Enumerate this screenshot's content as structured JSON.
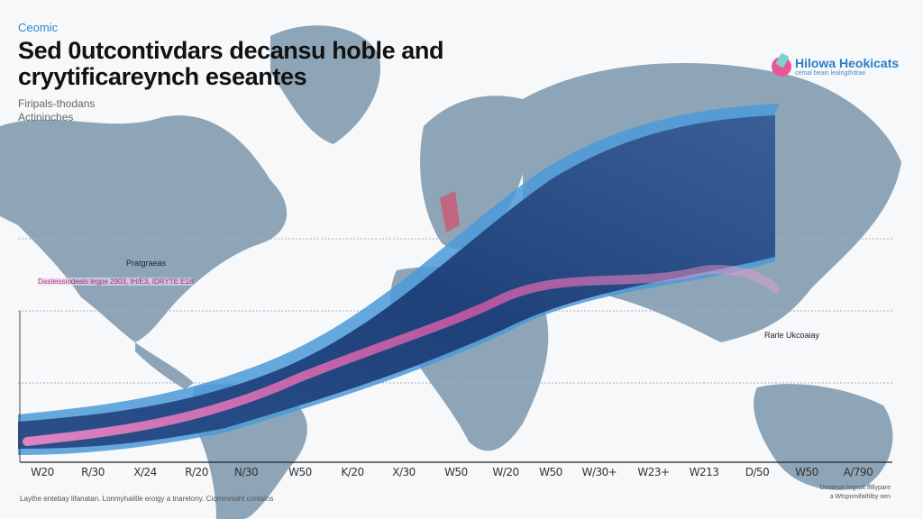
{
  "header": {
    "kicker": "Ceomic",
    "title": "Sed 0utcontivdars decansu hoble and cryytificareynch eseantes",
    "subtitle_lines": [
      "Firipals-thodans",
      "Actininches"
    ]
  },
  "logo": {
    "name": "Hilowa Heokicats",
    "tagline": "cemal beain lealngthdrae"
  },
  "map_labels": {
    "north_america": "Pratgraeas",
    "pink_annotation": "Dasteissiodeals legpe 2903, IH/E3, IDRYTE E18",
    "asia": "Rarle Ukcoaiay"
  },
  "axis": {
    "ticks": [
      "W20",
      "R/30",
      "X/24",
      "R/20",
      "N/30",
      "W50",
      "K/20",
      "X/30",
      "W50",
      "W/20",
      "W50",
      "W/30+",
      "W23+",
      "W213",
      "D/50",
      "W50",
      "A/790"
    ]
  },
  "footer": {
    "note": "Laythe entebay lifanatan. Lonmyhalitle eroigy a tnaretony. Ciqmmniaht contains",
    "credit_lines": [
      "Detatnon legsalt ffillypare",
      "a Wtspnmifathlby oen"
    ]
  },
  "colors": {
    "land": "#8ea5b7",
    "band_dark": "#1d3f78",
    "band_edge": "#4a9ad8",
    "pink": "#e060b0",
    "accent": "#2a86d6"
  }
}
